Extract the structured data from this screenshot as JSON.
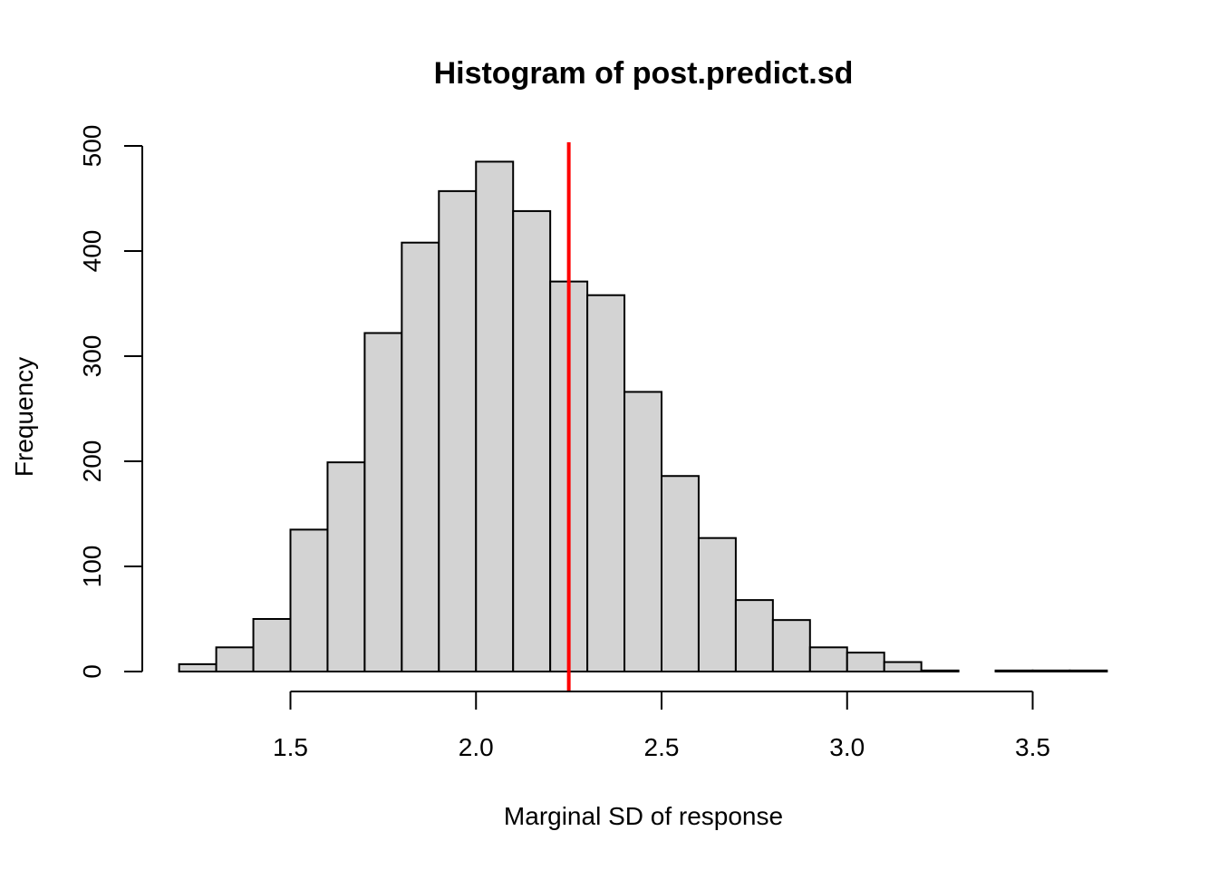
{
  "chart_data": {
    "type": "bar",
    "title": "Histogram of post.predict.sd",
    "xlabel": "Marginal SD of response",
    "ylabel": "Frequency",
    "xlim": [
      1.2,
      3.7
    ],
    "ylim": [
      0,
      500
    ],
    "bin_width": 0.1,
    "bin_starts": [
      1.2,
      1.3,
      1.4,
      1.5,
      1.6,
      1.7,
      1.8,
      1.9,
      2.0,
      2.1,
      2.2,
      2.3,
      2.4,
      2.5,
      2.6,
      2.7,
      2.8,
      2.9,
      3.0,
      3.1,
      3.2,
      3.3,
      3.4,
      3.5,
      3.6
    ],
    "values": [
      7,
      23,
      50,
      135,
      199,
      322,
      408,
      457,
      485,
      438,
      371,
      358,
      266,
      186,
      127,
      68,
      49,
      23,
      18,
      9,
      1,
      0,
      1,
      1,
      1
    ],
    "bar_color": "#d3d3d3",
    "bar_border": "#000000",
    "x_ticks": [
      1.5,
      2.0,
      2.5,
      3.0,
      3.5
    ],
    "x_tick_labels": [
      "1.5",
      "2.0",
      "2.5",
      "3.0",
      "3.5"
    ],
    "y_ticks": [
      0,
      100,
      200,
      300,
      400,
      500
    ],
    "y_tick_labels": [
      "0",
      "100",
      "200",
      "300",
      "400",
      "500"
    ],
    "reference_line": {
      "x": 2.25,
      "color": "#ff0000"
    },
    "grid": false,
    "legend": "none"
  }
}
